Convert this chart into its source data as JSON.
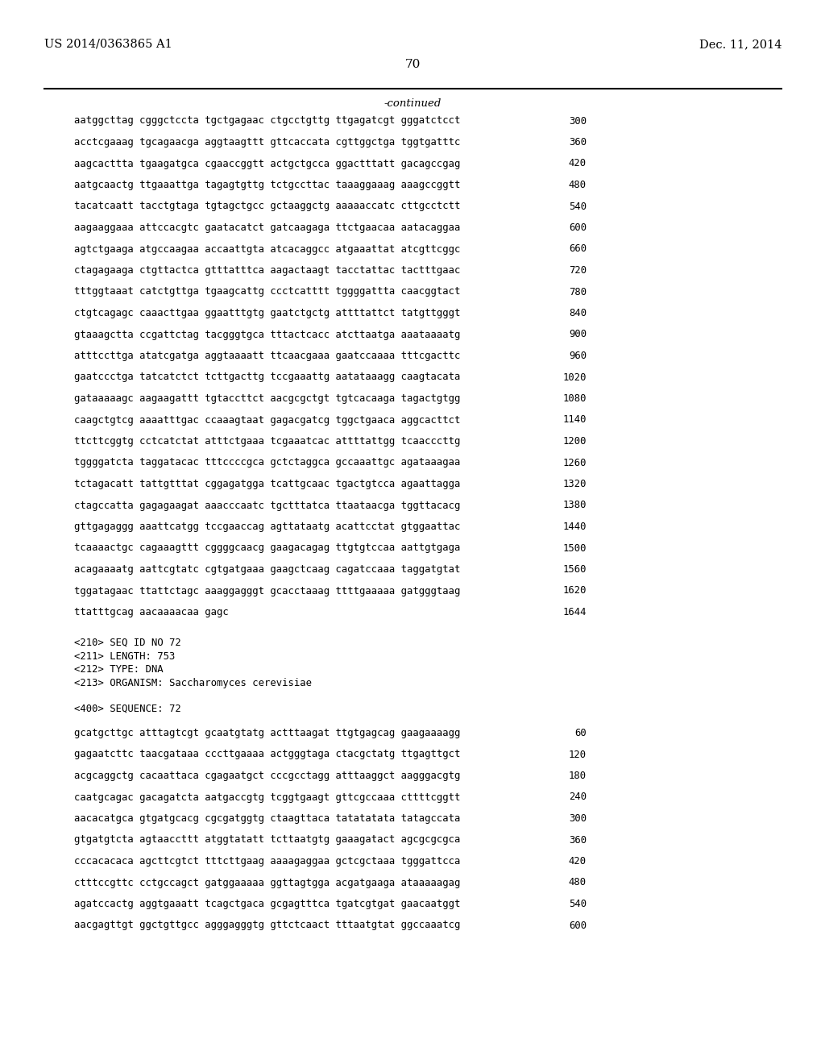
{
  "bg_color": "#ffffff",
  "header_left": "US 2014/0363865 A1",
  "header_right": "Dec. 11, 2014",
  "page_number": "70",
  "continued_label": "-continued",
  "sequence_lines": [
    {
      "text": "aatggcttag cgggctccta tgctgagaac ctgcctgttg ttgagatcgt gggatctcct",
      "num": "300"
    },
    {
      "text": "acctcgaaag tgcagaacga aggtaagttt gttcaccata cgttggctga tggtgatttc",
      "num": "360"
    },
    {
      "text": "aagcacttta tgaagatgca cgaaccggtt actgctgcca ggactttatt gacagccgag",
      "num": "420"
    },
    {
      "text": "aatgcaactg ttgaaattga tagagtgttg tctgccttac taaaggaaag aaagccggtt",
      "num": "480"
    },
    {
      "text": "tacatcaatt tacctgtaga tgtagctgcc gctaaggctg aaaaaccatc cttgcctctt",
      "num": "540"
    },
    {
      "text": "aagaaggaaa attccacgtc gaatacatct gatcaagaga ttctgaacaa aatacaggaa",
      "num": "600"
    },
    {
      "text": "agtctgaaga atgccaagaa accaattgta atcacaggcc atgaaattat atcgttcggc",
      "num": "660"
    },
    {
      "text": "ctagagaaga ctgttactca gtttatttca aagactaagt tacctattac tactttgaac",
      "num": "720"
    },
    {
      "text": "tttggtaaat catctgttga tgaagcattg ccctcatttt tggggattta caacggtact",
      "num": "780"
    },
    {
      "text": "ctgtcagagc caaacttgaa ggaatttgtg gaatctgctg attttattct tatgttgggt",
      "num": "840"
    },
    {
      "text": "gtaaagctta ccgattctag tacgggtgca tttactcacc atcttaatga aaataaaatg",
      "num": "900"
    },
    {
      "text": "atttccttga atatcgatga aggtaaaatt ttcaacgaaa gaatccaaaa tttcgacttc",
      "num": "960"
    },
    {
      "text": "gaatccctga tatcatctct tcttgacttg tccgaaattg aatataaagg caagtacata",
      "num": "1020"
    },
    {
      "text": "gataaaaagc aagaagattt tgtaccttct aacgcgctgt tgtcacaaga tagactgtgg",
      "num": "1080"
    },
    {
      "text": "caagctgtcg aaaatttgac ccaaagtaat gagacgatcg tggctgaaca aggcacttct",
      "num": "1140"
    },
    {
      "text": "ttcttcggtg cctcatctat atttctgaaa tcgaaatcac attttattgg tcaacccttg",
      "num": "1200"
    },
    {
      "text": "tggggatcta taggatacac tttccccgca gctctaggca gccaaattgc agataaagaa",
      "num": "1260"
    },
    {
      "text": "tctagacatt tattgtttat cggagatgga tcattgcaac tgactgtcca agaattagga",
      "num": "1320"
    },
    {
      "text": "ctagccatta gagagaagat aaacccaatc tgctttatca ttaataacga tggttacacg",
      "num": "1380"
    },
    {
      "text": "gttgagaggg aaattcatgg tccgaaccag agttataatg acattcctat gtggaattac",
      "num": "1440"
    },
    {
      "text": "tcaaaactgc cagaaagttt cggggcaacg gaagacagag ttgtgtccaa aattgtgaga",
      "num": "1500"
    },
    {
      "text": "acagaaaatg aattcgtatc cgtgatgaaa gaagctcaag cagatccaaa taggatgtat",
      "num": "1560"
    },
    {
      "text": "tggatagaac ttattctagc aaaggagggt gcacctaaag ttttgaaaaa gatgggtaag",
      "num": "1620"
    },
    {
      "text": "ttatttgcag aacaaaacaa gagc",
      "num": "1644"
    }
  ],
  "metadata_lines": [
    "<210> SEQ ID NO 72",
    "<211> LENGTH: 753",
    "<212> TYPE: DNA",
    "<213> ORGANISM: Saccharomyces cerevisiae"
  ],
  "sequence_label": "<400> SEQUENCE: 72",
  "seq72_lines": [
    {
      "text": "gcatgcttgc atttagtcgt gcaatgtatg actttaagat ttgtgagcag gaagaaaagg",
      "num": "60"
    },
    {
      "text": "gagaatcttc taacgataaa cccttgaaaa actgggtaga ctacgctatg ttgagttgct",
      "num": "120"
    },
    {
      "text": "acgcaggctg cacaattaca cgagaatgct cccgcctagg atttaaggct aagggacgtg",
      "num": "180"
    },
    {
      "text": "caatgcagac gacagatcta aatgaccgtg tcggtgaagt gttcgccaaa cttttcggtt",
      "num": "240"
    },
    {
      "text": "aacacatgca gtgatgcacg cgcgatggtg ctaagttaca tatatatata tatagccata",
      "num": "300"
    },
    {
      "text": "gtgatgtcta agtaaccttt atggtatatt tcttaatgtg gaaagatact agcgcgcgca",
      "num": "360"
    },
    {
      "text": "cccacacaca agcttcgtct tttcttgaag aaaagaggaa gctcgctaaa tgggattcca",
      "num": "420"
    },
    {
      "text": "ctttccgttc cctgccagct gatggaaaaa ggttagtgga acgatgaaga ataaaaagag",
      "num": "480"
    },
    {
      "text": "agatccactg aggtgaaatt tcagctgaca gcgagtttca tgatcgtgat gaacaatggt",
      "num": "540"
    },
    {
      "text": "aacgagttgt ggctgttgcc agggagggtg gttctcaact tttaatgtat ggccaaatcg",
      "num": "600"
    }
  ]
}
